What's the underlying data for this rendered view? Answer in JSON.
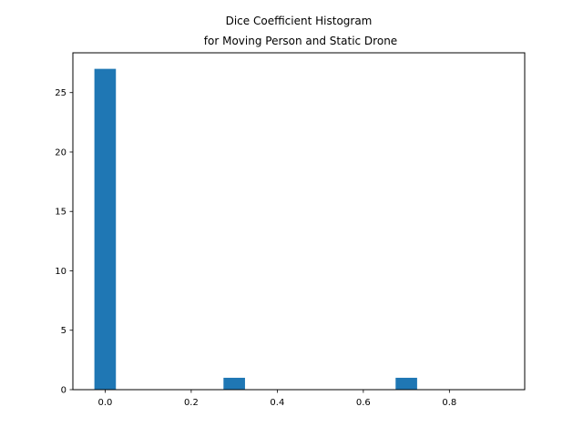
{
  "chart_data": {
    "type": "bar",
    "title": [
      "Dice Coefficient Histogram",
      "for Moving Person and Static Drone"
    ],
    "xlabel": "",
    "ylabel": "",
    "xlim": [
      -0.075,
      0.975
    ],
    "ylim": [
      0,
      28.35
    ],
    "bar_width": 0.05,
    "bar_color": "#1f77b4",
    "bins": [
      {
        "x": 0.0,
        "count": 27
      },
      {
        "x": 0.3,
        "count": 1
      },
      {
        "x": 0.7,
        "count": 1
      }
    ],
    "x_ticks": [
      "0.0",
      "0.2",
      "0.4",
      "0.6",
      "0.8"
    ],
    "y_ticks": [
      "0",
      "5",
      "10",
      "15",
      "20",
      "25"
    ],
    "grid": false,
    "legend": "none"
  }
}
